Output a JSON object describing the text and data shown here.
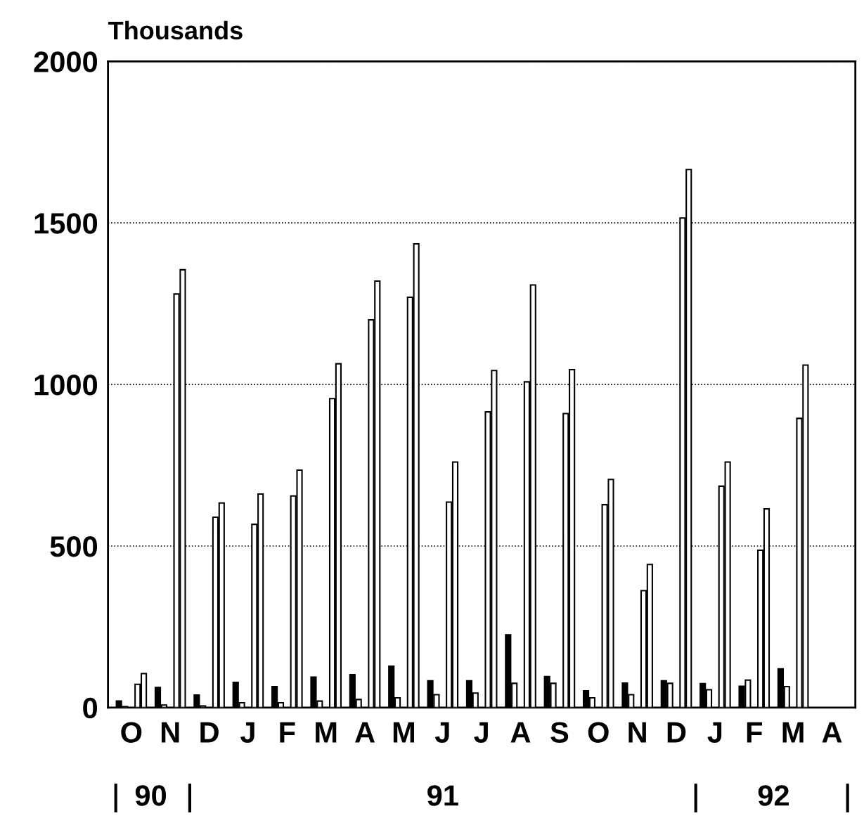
{
  "chart_data": {
    "type": "bar",
    "ylabel": "Thousands",
    "categories": [
      "O",
      "N",
      "D",
      "J",
      "F",
      "M",
      "A",
      "M",
      "J",
      "J",
      "A",
      "S",
      "O",
      "N",
      "D",
      "J",
      "F",
      "M",
      "A"
    ],
    "series": [
      {
        "color": "#000000",
        "values": [
          20,
          62,
          39,
          78,
          65,
          94,
          102,
          128,
          83,
          83,
          225,
          96,
          52,
          76,
          83,
          74,
          66,
          120,
          null
        ]
      },
      {
        "color": "#ffffff",
        "values": [
          3,
          8,
          5,
          15,
          15,
          20,
          25,
          30,
          40,
          45,
          75,
          75,
          30,
          40,
          75,
          55,
          85,
          65,
          null
        ]
      },
      {
        "color": "#ffffff",
        "values": [
          72,
          1280,
          589,
          567,
          655,
          956,
          1200,
          1270,
          636,
          915,
          1008,
          910,
          628,
          362,
          1515,
          685,
          487,
          895,
          null
        ]
      },
      {
        "color": "#ffffff",
        "values": [
          105,
          1355,
          633,
          661,
          735,
          1064,
          1320,
          1435,
          760,
          1043,
          1308,
          1046,
          706,
          443,
          1665,
          760,
          615,
          1060,
          null
        ]
      }
    ],
    "ylim": [
      0,
      2000
    ],
    "yticks": [
      0,
      500,
      1000,
      1500,
      2000
    ],
    "grid": "y",
    "line_style": "dotted",
    "annotations": [
      "90",
      "91",
      "92"
    ]
  }
}
